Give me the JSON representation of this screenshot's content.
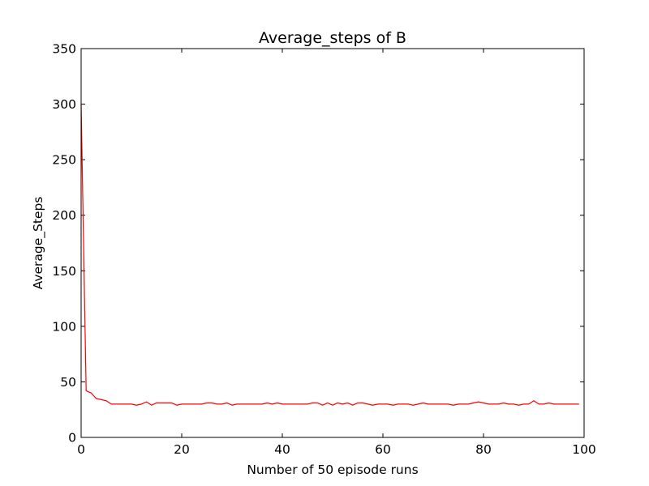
{
  "chart_data": {
    "type": "line",
    "title": "Average_steps of B",
    "xlabel": "Number of 50 episode runs",
    "ylabel": "Average_Steps",
    "xlim": [
      0,
      100
    ],
    "ylim": [
      0,
      350
    ],
    "xticks": [
      0,
      20,
      40,
      60,
      80,
      100
    ],
    "yticks": [
      0,
      50,
      100,
      150,
      200,
      250,
      300,
      350
    ],
    "grid": false,
    "line_color": "#ff0000",
    "series": [
      {
        "values": [
          300,
          42,
          40,
          35,
          34,
          33,
          30,
          30,
          30,
          30,
          30,
          29,
          30,
          32,
          29,
          31,
          31,
          31,
          31,
          29,
          30,
          30,
          30,
          30,
          30,
          31,
          31,
          30,
          30,
          31,
          29,
          30,
          30,
          30,
          30,
          30,
          30,
          31,
          30,
          31,
          30,
          30,
          30,
          30,
          30,
          30,
          31,
          31,
          29,
          31,
          29,
          31,
          30,
          31,
          29,
          31,
          31,
          30,
          29,
          30,
          30,
          30,
          29,
          30,
          30,
          30,
          29,
          30,
          31,
          30,
          30,
          30,
          30,
          30,
          29,
          30,
          30,
          30,
          31,
          32,
          31,
          30,
          30,
          30,
          31,
          30,
          30,
          29,
          30,
          30,
          33,
          30,
          30,
          31,
          30,
          30,
          30,
          30,
          30,
          30
        ]
      }
    ]
  }
}
